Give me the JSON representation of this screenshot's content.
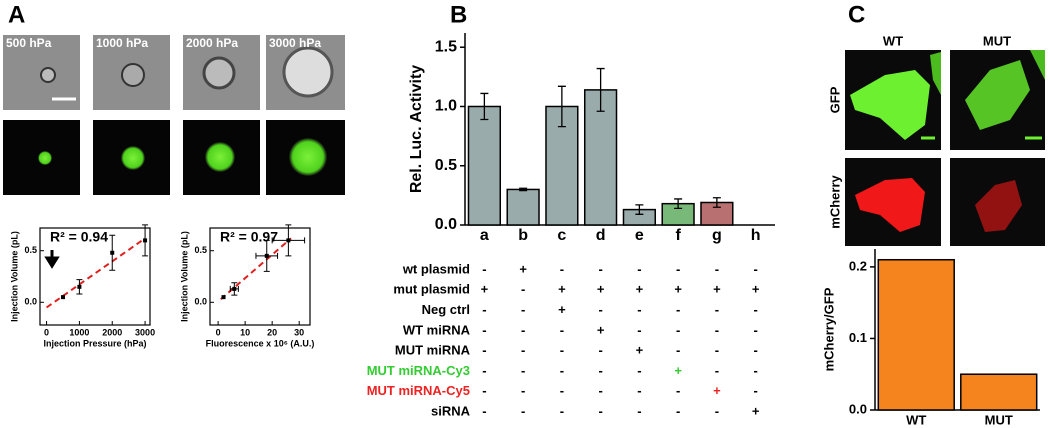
{
  "panels": {
    "A": {
      "label": "A",
      "image_labels": [
        "500 hPa",
        "1000 hPa",
        "2000 hPa",
        "3000 hPa"
      ]
    },
    "B": {
      "label": "B"
    },
    "C": {
      "label": "C",
      "columns": [
        "WT",
        "MUT"
      ],
      "rows": [
        "GFP",
        "mCherry"
      ]
    }
  },
  "treatment_table": {
    "rows": [
      {
        "label": "wt plasmid",
        "color": "#000000",
        "cells": [
          "-",
          "+",
          "-",
          "-",
          "-",
          "-",
          "-",
          "-"
        ]
      },
      {
        "label": "mut plasmid",
        "color": "#000000",
        "cells": [
          "+",
          "-",
          "+",
          "+",
          "+",
          "+",
          "+",
          "+"
        ]
      },
      {
        "label": "Neg ctrl",
        "color": "#000000",
        "cells": [
          "-",
          "-",
          "+",
          "-",
          "-",
          "-",
          "-",
          "-"
        ]
      },
      {
        "label": "WT miRNA",
        "color": "#000000",
        "cells": [
          "-",
          "-",
          "-",
          "+",
          "-",
          "-",
          "-",
          "-"
        ]
      },
      {
        "label": "MUT miRNA",
        "color": "#000000",
        "cells": [
          "-",
          "-",
          "-",
          "-",
          "+",
          "-",
          "-",
          "-"
        ]
      },
      {
        "label": "MUT miRNA-Cy3",
        "color": "#33cc33",
        "cells": [
          "-",
          "-",
          "-",
          "-",
          "-",
          "+",
          "-",
          "-"
        ]
      },
      {
        "label": "MUT miRNA-Cy5",
        "color": "#ee2222",
        "cells": [
          "-",
          "-",
          "-",
          "-",
          "-",
          "-",
          "+",
          "-"
        ]
      },
      {
        "label": "siRNA",
        "color": "#000000",
        "cells": [
          "-",
          "-",
          "-",
          "-",
          "-",
          "-",
          "-",
          "+"
        ]
      }
    ]
  },
  "chart_data": [
    {
      "type": "scatter",
      "annotation": "R² = 0.94",
      "x_label": "Injection Pressure (hPa)",
      "y_label": "Injection Volume (pL)",
      "x": [
        500,
        1000,
        2000,
        3000
      ],
      "values": [
        0.05,
        0.15,
        0.48,
        0.6
      ],
      "y_errors": [
        null,
        0.07,
        0.17,
        0.15
      ],
      "x_errors": [
        null,
        null,
        null,
        null
      ],
      "color": "#000000",
      "trendline": {
        "x": [
          0,
          3000
        ],
        "y": [
          -0.05,
          0.62
        ],
        "color": "#e02020"
      },
      "xlim": [
        -200,
        3150
      ],
      "ylim": [
        -0.22,
        0.72
      ],
      "xticks": [
        0,
        1000,
        2000,
        3000
      ],
      "yticks": [
        {
          "value": 0,
          "label": "0.0"
        },
        0.5
      ]
    },
    {
      "type": "scatter",
      "annotation": "R² = 0.97",
      "x_label": "Fluorescence x 10⁶ (A.U.)",
      "y_label": "Injection Volume (pL)",
      "x": [
        2,
        6,
        18,
        26
      ],
      "values": [
        0.05,
        0.13,
        0.45,
        0.6
      ],
      "y_errors": [
        null,
        0.06,
        0.15,
        0.15
      ],
      "x_errors": [
        null,
        1.5,
        4,
        6
      ],
      "color": "#000000",
      "trendline": {
        "x": [
          1,
          27
        ],
        "y": [
          0.03,
          0.62
        ],
        "color": "#e02020"
      },
      "xlim": [
        -3,
        34
      ],
      "ylim": [
        -0.22,
        0.72
      ],
      "xticks": [
        0,
        10,
        20,
        30
      ],
      "yticks": [
        {
          "value": 0,
          "label": "0.0"
        },
        0.5
      ]
    },
    {
      "type": "bar",
      "y_label": "Rel. Luc. Activity",
      "categories": [
        "a",
        "b",
        "c",
        "d",
        "e",
        "f",
        "g",
        "h"
      ],
      "values": [
        1.0,
        0.3,
        1.0,
        1.14,
        0.13,
        0.18,
        0.19,
        0
      ],
      "errors": [
        0.11,
        0.01,
        0.17,
        0.18,
        0.04,
        0.04,
        0.04,
        0
      ],
      "colors": [
        "#9aabab",
        "#9aabab",
        "#9aabab",
        "#9aabab",
        "#9aabab",
        "#78b878",
        "#b87070",
        "#9aabab"
      ],
      "ylim": [
        0,
        1.62
      ],
      "yticks": [
        {
          "value": 0,
          "label": "0.0"
        },
        0.5,
        {
          "value": 1,
          "label": "1.0"
        },
        1.5
      ]
    },
    {
      "type": "bar",
      "y_label": "mCherry/GFP",
      "categories": [
        "WT",
        "MUT"
      ],
      "values": [
        0.21,
        0.05
      ],
      "colors": [
        "#f5841f",
        "#f5841f"
      ],
      "ylim": [
        0,
        0.225
      ],
      "yticks": [
        {
          "value": 0,
          "label": "0.0"
        },
        0.1,
        0.2
      ]
    }
  ]
}
